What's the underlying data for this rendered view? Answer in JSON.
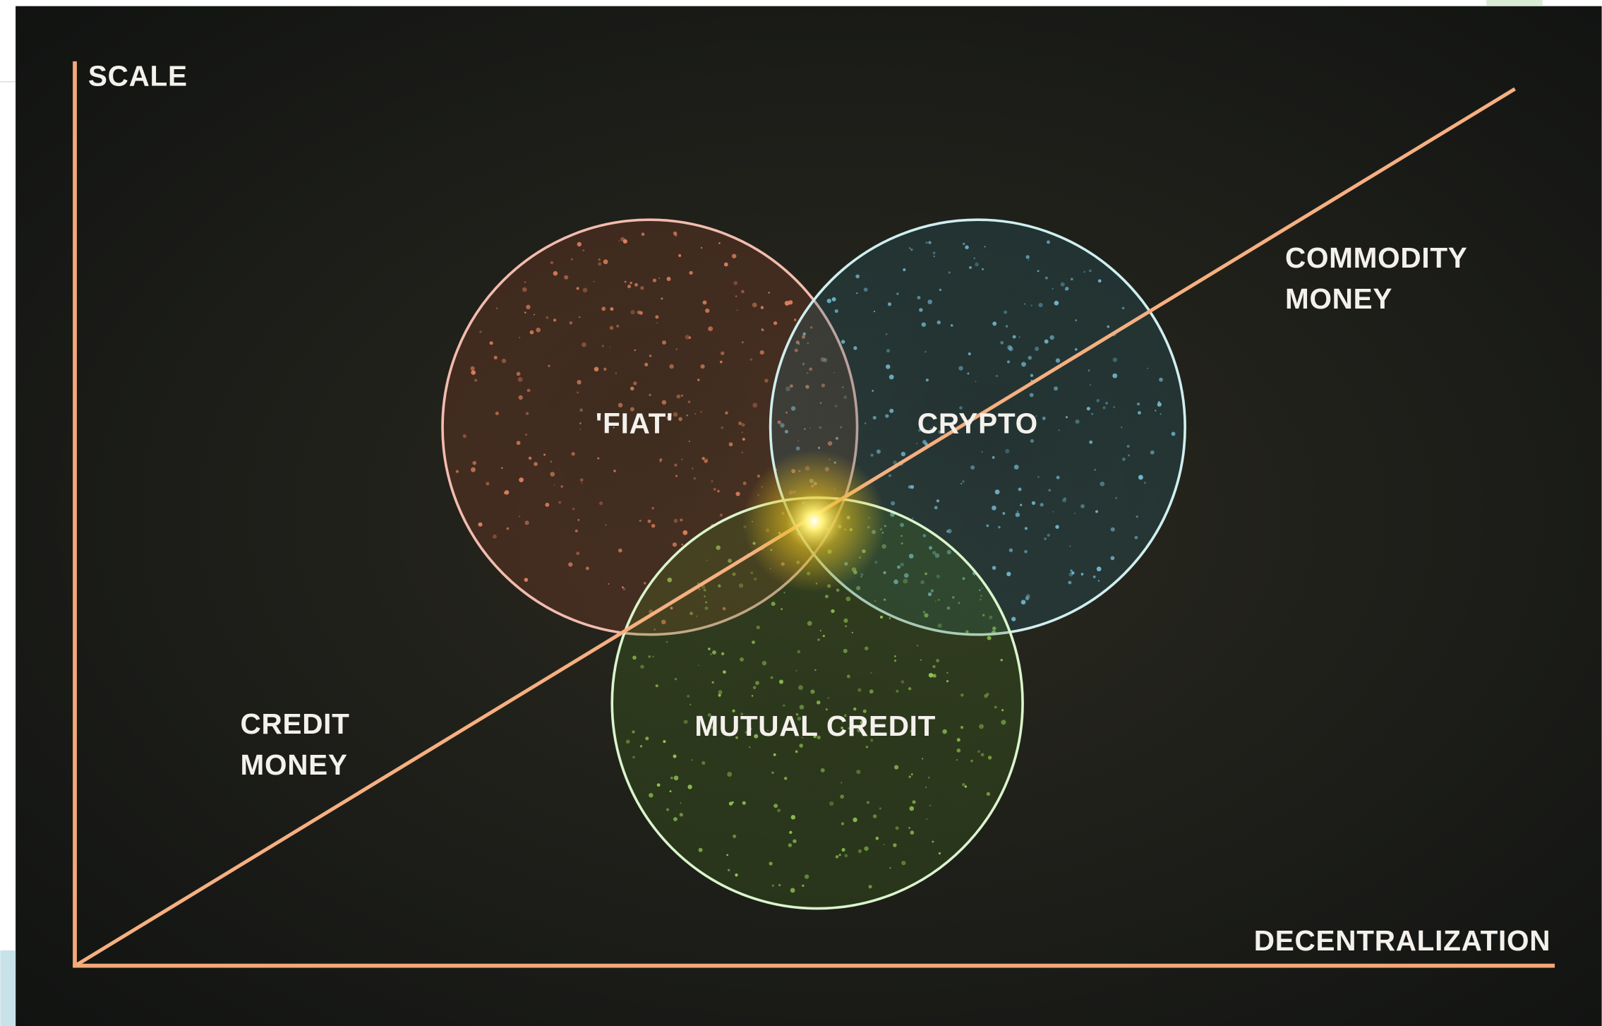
{
  "axes": {
    "y_label": "SCALE",
    "x_label": "DECENTRALIZATION"
  },
  "regions": [
    {
      "lines": [
        "COMMODITY",
        "MONEY"
      ]
    },
    {
      "lines": [
        "CREDIT",
        "MONEY"
      ]
    }
  ],
  "circles": [
    {
      "label": "'FIAT'"
    },
    {
      "label": "CRYPTO"
    },
    {
      "label": "MUTUAL CREDIT"
    }
  ]
}
